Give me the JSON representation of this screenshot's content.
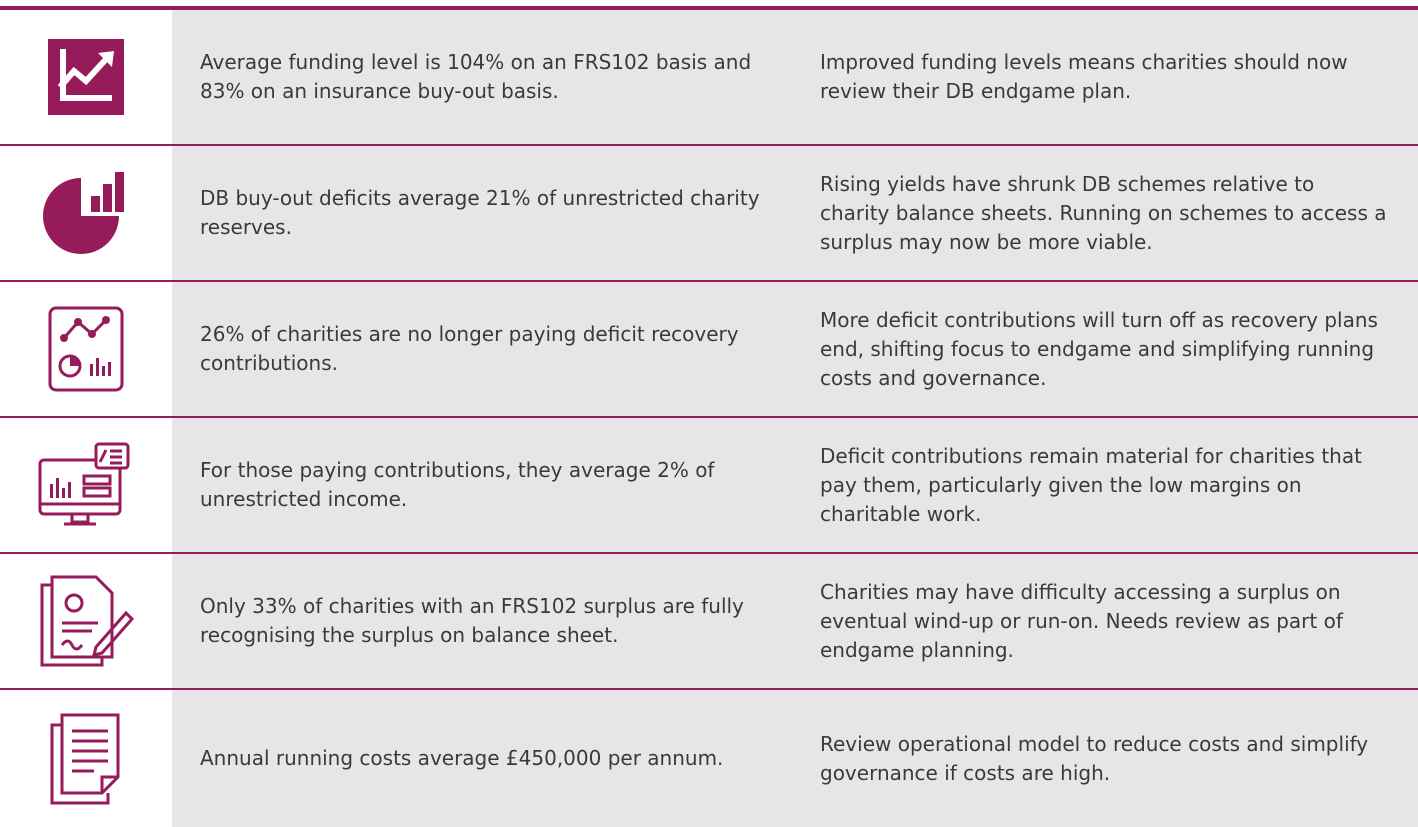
{
  "rows": [
    {
      "finding": "Average funding level is 104% on an FRS102 basis and 83% on an insurance buy-out basis.",
      "implication": "Improved funding levels means charities should now review their DB endgame plan."
    },
    {
      "finding": "DB buy-out deficits average 21% of unrestricted charity reserves.",
      "implication": "Rising yields have shrunk DB schemes relative to charity balance sheets. Running on schemes to access a surplus may now be more viable."
    },
    {
      "finding": "26% of charities are no longer paying deficit recovery contributions.",
      "implication": "More deficit contributions will turn off as recovery plans end, shifting focus to endgame and simplifying running costs and governance."
    },
    {
      "finding": "For those paying contributions, they average 2% of unrestricted income.",
      "implication": "Deficit contributions remain material for charities that pay them, particularly given the low margins on charitable work."
    },
    {
      "finding": "Only 33% of charities with an FRS102 surplus are fully recognising the surplus on balance sheet.",
      "implication": "Charities may have difficulty accessing a surplus on eventual wind-up or run-on. Needs review as part of endgame planning."
    },
    {
      "finding": "Annual running costs average £450,000 per annum.",
      "implication": "Review operational model to reduce costs and simplify governance if costs are high."
    }
  ]
}
